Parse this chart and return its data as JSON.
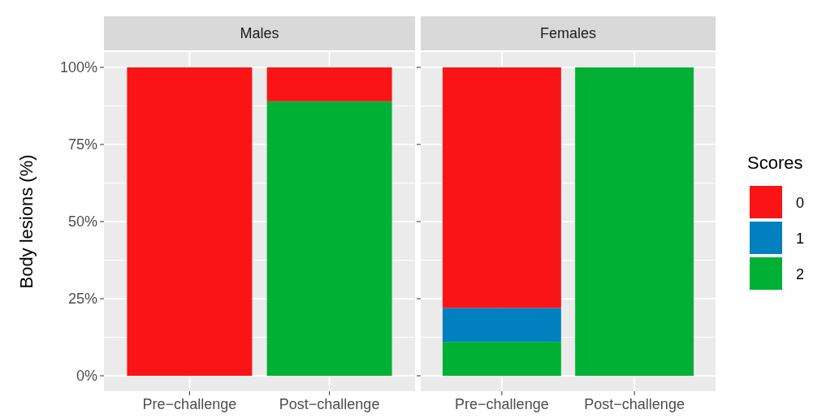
{
  "chart_data": [
    {
      "type": "bar",
      "title": "Males",
      "ylabel": "Body lesions (%)",
      "categories": [
        "Pre−challenge",
        "Post−challenge"
      ],
      "stacked": true,
      "series": [
        {
          "color": "#00b034",
          "values": [
            0,
            89
          ]
        },
        {
          "color": "#0080bf",
          "values": [
            0,
            0
          ]
        },
        {
          "color": "#fa1416",
          "values": [
            100,
            11
          ]
        }
      ],
      "ylim": [
        -5,
        105
      ],
      "yticks": [
        {
          "value": 0,
          "label": "0%"
        },
        {
          "value": 25,
          "label": "25%"
        },
        {
          "value": 50,
          "label": "50%"
        },
        {
          "value": 75,
          "label": "75%"
        },
        {
          "value": 100,
          "label": "100%"
        }
      ],
      "grid": true
    },
    {
      "type": "bar",
      "title": "Females",
      "categories": [
        "Pre−challenge",
        "Post−challenge"
      ],
      "stacked": true,
      "series": [
        {
          "name": "2",
          "color": "#00b034",
          "values": [
            11,
            100
          ]
        },
        {
          "name": "1",
          "color": "#0080bf",
          "values": [
            11,
            0
          ]
        },
        {
          "name": "0",
          "color": "#fa1416",
          "values": [
            78,
            0
          ]
        }
      ],
      "ylim": [
        -5,
        105
      ],
      "yticks": [
        {
          "value": 0,
          "label": null
        },
        {
          "value": 25,
          "label": null
        },
        {
          "value": 50,
          "label": null
        },
        {
          "value": 75,
          "label": null
        },
        {
          "value": 100,
          "label": null
        }
      ],
      "tick_labels": "x",
      "grid": true,
      "legend": "right",
      "legend_title": "Scores"
    }
  ]
}
